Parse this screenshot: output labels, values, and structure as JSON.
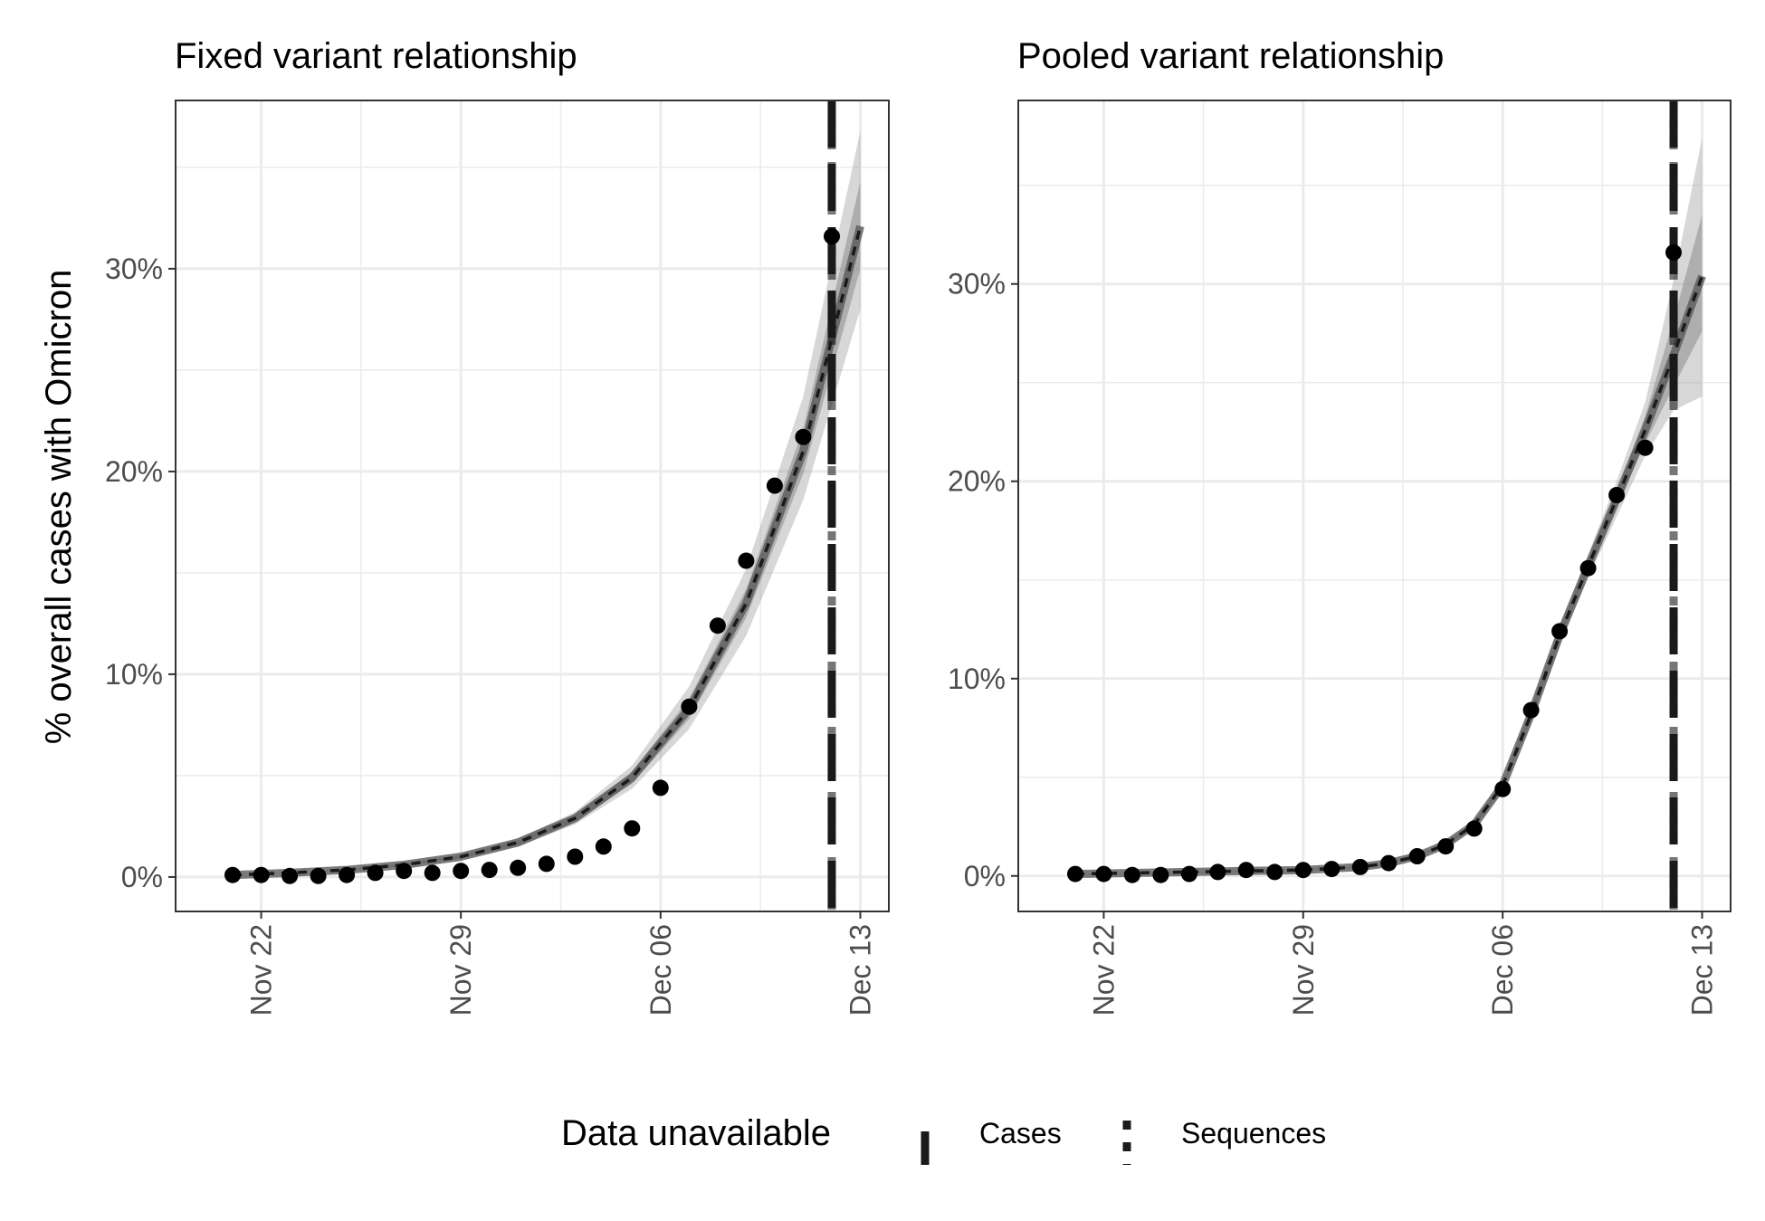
{
  "y_axis_label": "% overall cases with Omicron",
  "legend": {
    "title": "Data unavailable",
    "items": [
      {
        "label": "Cases",
        "style": "solid"
      },
      {
        "label": "Sequences",
        "style": "dotted"
      }
    ]
  },
  "colors": {
    "points": "#000000",
    "line": "#1a1a1a",
    "ribbon": "#8c8c8c",
    "grid": "#ebebeb",
    "panel_border": "#333333"
  },
  "chart_data": [
    {
      "type": "line",
      "title": "Fixed variant relationship",
      "xlabel": "",
      "ylabel": "% overall cases with Omicron",
      "x_ticks": [
        "Nov 22",
        "Nov 29",
        "Dec 06",
        "Dec 13"
      ],
      "y_ticks": [
        "0%",
        "10%",
        "20%",
        "30%"
      ],
      "xlim": [
        "2021-11-19",
        "2021-12-14"
      ],
      "ylim": [
        -1.7,
        38.3
      ],
      "grid": true,
      "cutoff_date": "2021-12-12",
      "observed": {
        "x": [
          "2021-11-21",
          "2021-11-22",
          "2021-11-23",
          "2021-11-24",
          "2021-11-25",
          "2021-11-26",
          "2021-11-27",
          "2021-11-28",
          "2021-11-29",
          "2021-11-30",
          "2021-12-01",
          "2021-12-02",
          "2021-12-03",
          "2021-12-04",
          "2021-12-05",
          "2021-12-06",
          "2021-12-07",
          "2021-12-08",
          "2021-12-09",
          "2021-12-10",
          "2021-12-11",
          "2021-12-12"
        ],
        "y": [
          0.1,
          0.1,
          0.05,
          0.05,
          0.1,
          0.2,
          0.3,
          0.2,
          0.3,
          0.35,
          0.45,
          0.65,
          1.0,
          1.5,
          2.4,
          4.4,
          8.4,
          12.4,
          15.6,
          19.3,
          21.7,
          31.6
        ]
      },
      "fit": {
        "x": [
          "2021-11-21",
          "2021-11-23",
          "2021-11-25",
          "2021-11-27",
          "2021-11-29",
          "2021-12-01",
          "2021-12-03",
          "2021-12-05",
          "2021-12-07",
          "2021-12-09",
          "2021-12-11",
          "2021-12-13"
        ],
        "mean": [
          0.1,
          0.2,
          0.35,
          0.6,
          1.0,
          1.7,
          2.9,
          4.9,
          8.3,
          13.5,
          21.0,
          32.1
        ],
        "inner_lower": [
          0.1,
          0.2,
          0.33,
          0.57,
          0.95,
          1.6,
          2.75,
          4.6,
          7.8,
          12.8,
          19.9,
          30.0
        ],
        "inner_upper": [
          0.1,
          0.2,
          0.37,
          0.63,
          1.05,
          1.8,
          3.05,
          5.2,
          8.8,
          14.2,
          22.1,
          34.3
        ],
        "outer_lower": [
          0.1,
          0.19,
          0.32,
          0.55,
          0.9,
          1.5,
          2.6,
          4.35,
          7.3,
          11.9,
          18.6,
          28.0
        ],
        "outer_upper": [
          0.1,
          0.21,
          0.38,
          0.66,
          1.1,
          1.9,
          3.2,
          5.5,
          9.4,
          15.2,
          23.7,
          36.8
        ]
      }
    },
    {
      "type": "line",
      "title": "Pooled variant relationship",
      "xlabel": "",
      "ylabel": "",
      "x_ticks": [
        "Nov 22",
        "Nov 29",
        "Dec 06",
        "Dec 13"
      ],
      "y_ticks": [
        "0%",
        "10%",
        "20%",
        "30%"
      ],
      "xlim": [
        "2021-11-19",
        "2021-12-14"
      ],
      "ylim": [
        -1.8,
        39.3
      ],
      "grid": true,
      "cutoff_date": "2021-12-12",
      "observed": {
        "x": [
          "2021-11-21",
          "2021-11-22",
          "2021-11-23",
          "2021-11-24",
          "2021-11-25",
          "2021-11-26",
          "2021-11-27",
          "2021-11-28",
          "2021-11-29",
          "2021-11-30",
          "2021-12-01",
          "2021-12-02",
          "2021-12-03",
          "2021-12-04",
          "2021-12-05",
          "2021-12-06",
          "2021-12-07",
          "2021-12-08",
          "2021-12-09",
          "2021-12-10",
          "2021-12-11",
          "2021-12-12"
        ],
        "y": [
          0.1,
          0.1,
          0.05,
          0.05,
          0.1,
          0.2,
          0.3,
          0.2,
          0.3,
          0.35,
          0.45,
          0.65,
          1.0,
          1.5,
          2.4,
          4.4,
          8.4,
          12.4,
          15.6,
          19.3,
          21.7,
          31.6
        ]
      },
      "fit": {
        "x": [
          "2021-11-21",
          "2021-11-23",
          "2021-11-25",
          "2021-11-27",
          "2021-11-29",
          "2021-12-01",
          "2021-12-02",
          "2021-12-03",
          "2021-12-04",
          "2021-12-05",
          "2021-12-06",
          "2021-12-07",
          "2021-12-08",
          "2021-12-09",
          "2021-12-10",
          "2021-12-11",
          "2021-12-12",
          "2021-12-13"
        ],
        "mean": [
          0.1,
          0.15,
          0.2,
          0.25,
          0.3,
          0.45,
          0.65,
          1.0,
          1.6,
          2.6,
          4.6,
          8.2,
          12.2,
          15.7,
          19.1,
          22.6,
          26.4,
          30.4
        ],
        "inner_lower": [
          0.1,
          0.15,
          0.2,
          0.25,
          0.3,
          0.45,
          0.65,
          1.0,
          1.55,
          2.5,
          4.5,
          8.0,
          12.0,
          15.4,
          18.7,
          21.9,
          24.8,
          27.6
        ],
        "inner_upper": [
          0.1,
          0.15,
          0.2,
          0.25,
          0.3,
          0.45,
          0.65,
          1.0,
          1.65,
          2.7,
          4.7,
          8.4,
          12.4,
          16.0,
          19.5,
          23.3,
          28.2,
          33.5
        ],
        "outer_lower": [
          0.05,
          0.1,
          0.15,
          0.2,
          0.25,
          0.4,
          0.6,
          0.95,
          1.5,
          2.4,
          4.4,
          7.8,
          11.7,
          15.1,
          18.2,
          21.3,
          23.6,
          24.3
        ],
        "outer_upper": [
          0.15,
          0.2,
          0.25,
          0.3,
          0.35,
          0.5,
          0.7,
          1.05,
          1.7,
          2.8,
          4.8,
          8.6,
          12.7,
          16.3,
          20.0,
          24.0,
          30.2,
          37.4
        ]
      }
    }
  ]
}
